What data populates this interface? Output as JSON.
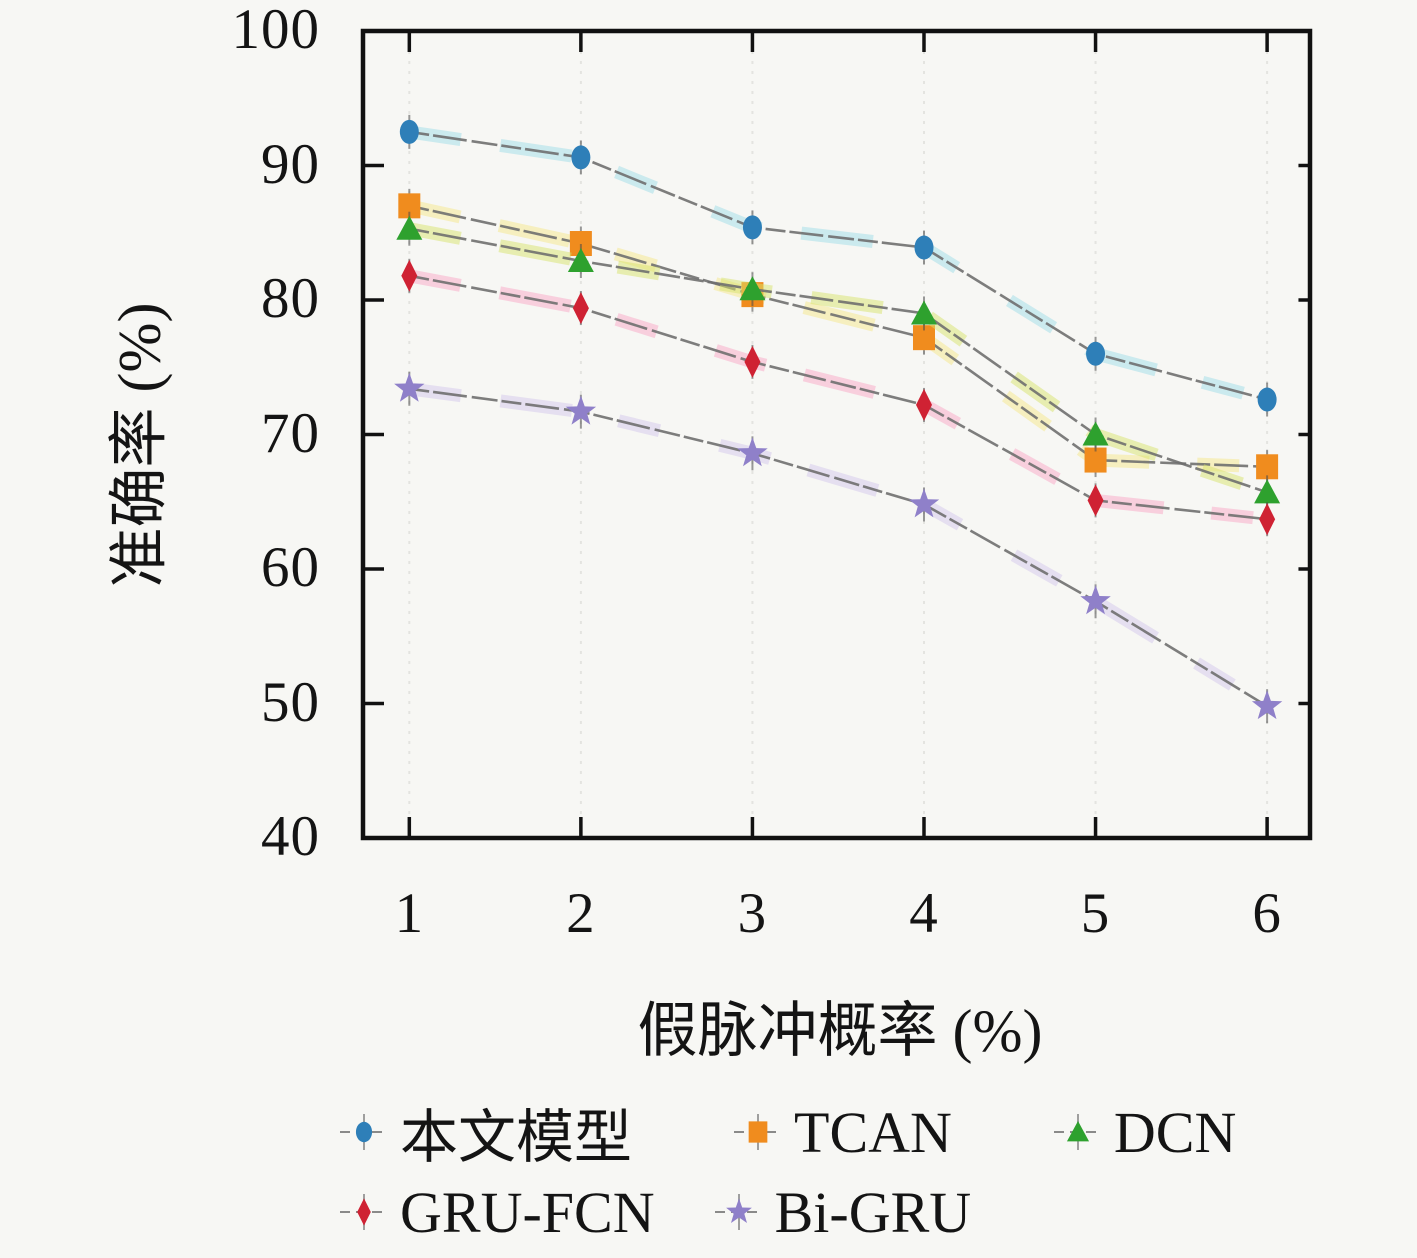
{
  "chart_data": {
    "type": "line",
    "title": "",
    "xlabel": "假脉冲概率 (%)",
    "ylabel": "准确率 (%)",
    "background": "#f7f7f4",
    "frame_color": "#111111",
    "grid": "faint vertical dashed lines at each x tick",
    "grid_color": "#dcdcd8",
    "sketch_line_color": "#6f6f6f",
    "legend_position": "below-two-rows",
    "categories": [
      1,
      2,
      3,
      4,
      5,
      6
    ],
    "xticks": [
      "1",
      "2",
      "3",
      "4",
      "5",
      "6"
    ],
    "yticks": [
      "40",
      "50",
      "60",
      "70",
      "80",
      "90",
      "100"
    ],
    "xlim": [
      0.73,
      6.25
    ],
    "ylim": [
      40,
      100
    ],
    "series": [
      {
        "name": "本文模型",
        "key": "benwen-moxing",
        "marker": "circle",
        "color": "#2e7fb8",
        "underlay": "#9fdde8",
        "values": [
          92.5,
          90.6,
          85.4,
          83.9,
          76.0,
          72.6
        ]
      },
      {
        "name": "TCAN",
        "key": "tcan",
        "marker": "square",
        "color": "#f08c1e",
        "underlay": "#f6e88a",
        "values": [
          87.0,
          84.2,
          80.4,
          77.2,
          68.1,
          67.6
        ]
      },
      {
        "name": "DCN",
        "key": "dcn",
        "marker": "triangle",
        "color": "#2ea12e",
        "underlay": "#d8e46c",
        "values": [
          85.3,
          82.9,
          80.8,
          79.0,
          70.0,
          65.7
        ]
      },
      {
        "name": "GRU-FCN",
        "key": "gru-fcn",
        "marker": "diamond",
        "color": "#cf2233",
        "underlay": "#f9a8c5",
        "values": [
          81.8,
          79.4,
          75.4,
          72.2,
          65.1,
          63.7
        ]
      },
      {
        "name": "Bi-GRU",
        "key": "bi-gru",
        "marker": "star",
        "color": "#8f80c9",
        "underlay": "#d3c8ec",
        "values": [
          73.4,
          71.7,
          68.6,
          64.8,
          57.6,
          49.8
        ]
      }
    ]
  }
}
